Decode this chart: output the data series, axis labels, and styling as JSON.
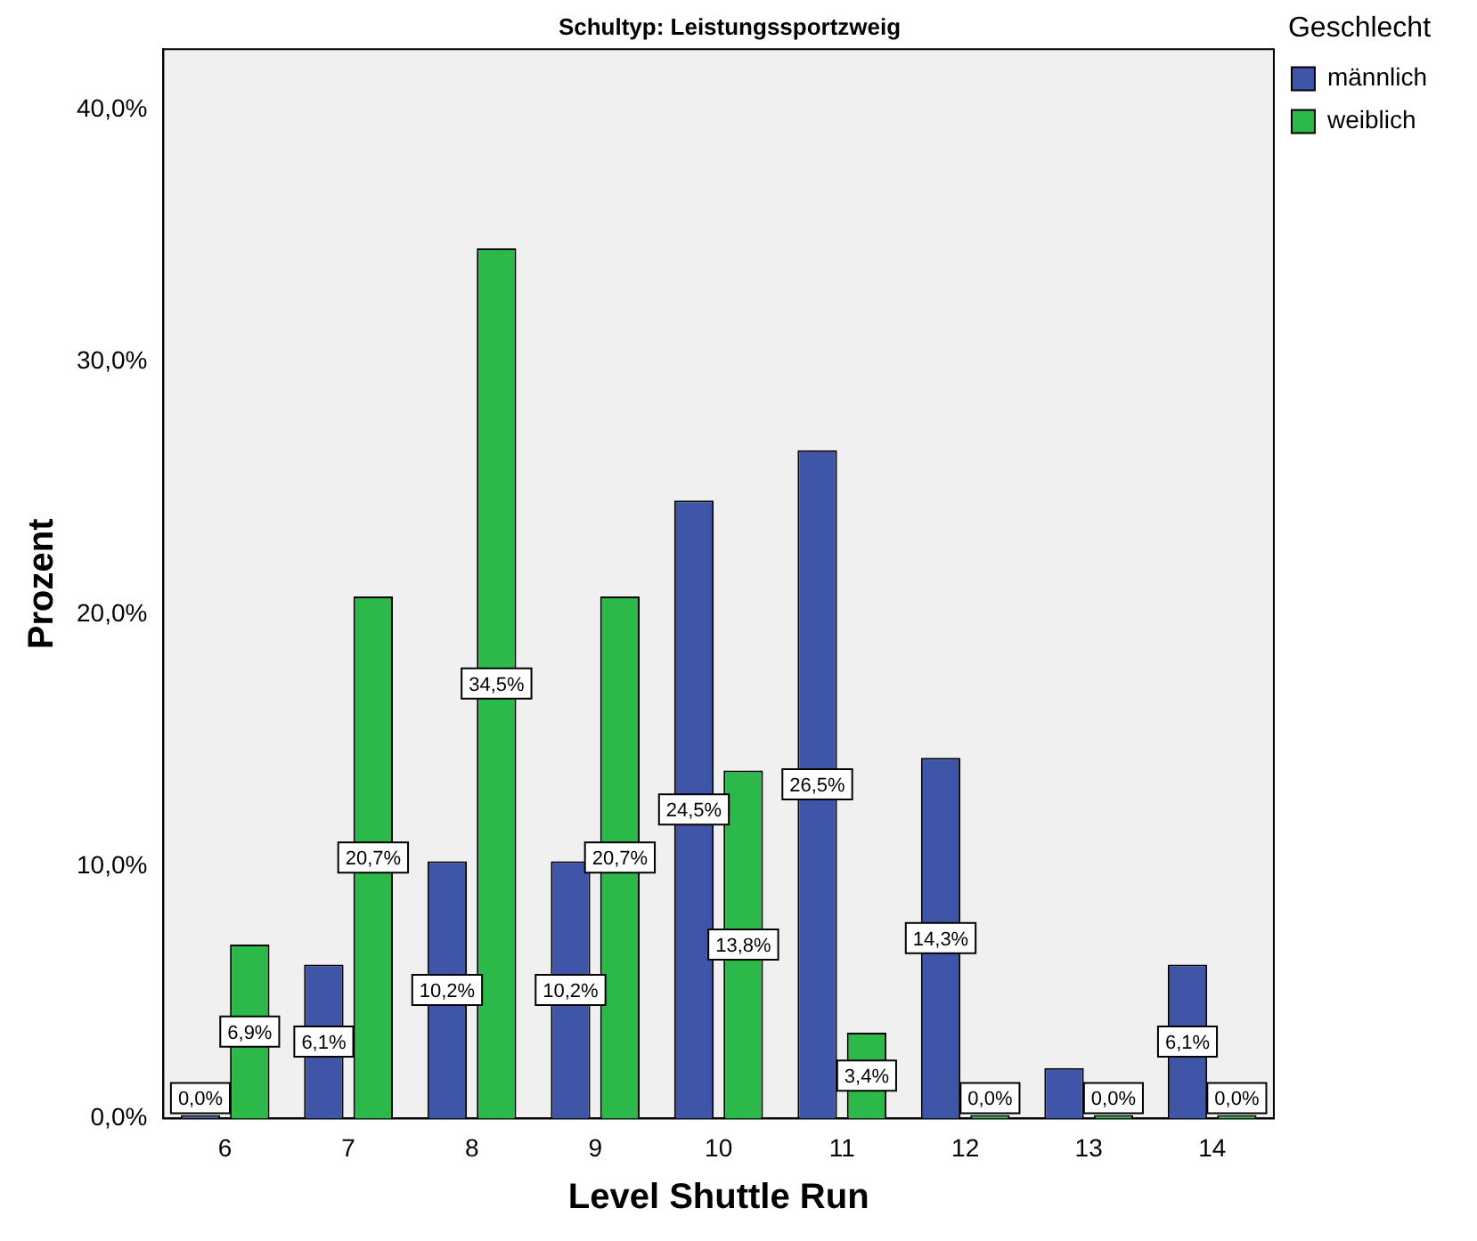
{
  "chart_data": {
    "type": "bar",
    "title": "Schultyp: Leistungssportzweig",
    "xlabel": "Level Shuttle Run",
    "ylabel": "Prozent",
    "legend_title": "Geschlecht",
    "legend": "top right",
    "grid": false,
    "categories": [
      "6",
      "7",
      "8",
      "9",
      "10",
      "11",
      "12",
      "13",
      "14"
    ],
    "ylim": [
      0,
      42.4
    ],
    "yticks": [
      {
        "value": 0,
        "label": "0,0%"
      },
      {
        "value": 10,
        "label": "10,0%"
      },
      {
        "value": 20,
        "label": "20,0%"
      },
      {
        "value": 30,
        "label": "30,0%"
      },
      {
        "value": 40,
        "label": "40,0%"
      }
    ],
    "series": [
      {
        "name": "männlich",
        "color": "#3f56a8",
        "values": [
          0,
          6.1,
          10.2,
          10.2,
          24.5,
          26.5,
          14.3,
          2.0,
          6.1
        ],
        "value_labels": [
          "0,0%",
          "6,1%",
          "10,2%",
          "10,2%",
          "24,5%",
          "26,5%",
          "14,3%",
          null,
          "6,1%"
        ]
      },
      {
        "name": "weiblich",
        "color": "#2db84a",
        "values": [
          6.9,
          20.7,
          34.5,
          20.7,
          13.8,
          3.4,
          0,
          0,
          0
        ],
        "value_labels": [
          "6,9%",
          "20,7%",
          "34,5%",
          "20,7%",
          "13,8%",
          "3,4%",
          "0,0%",
          "0,0%",
          "0,0%"
        ]
      }
    ]
  }
}
